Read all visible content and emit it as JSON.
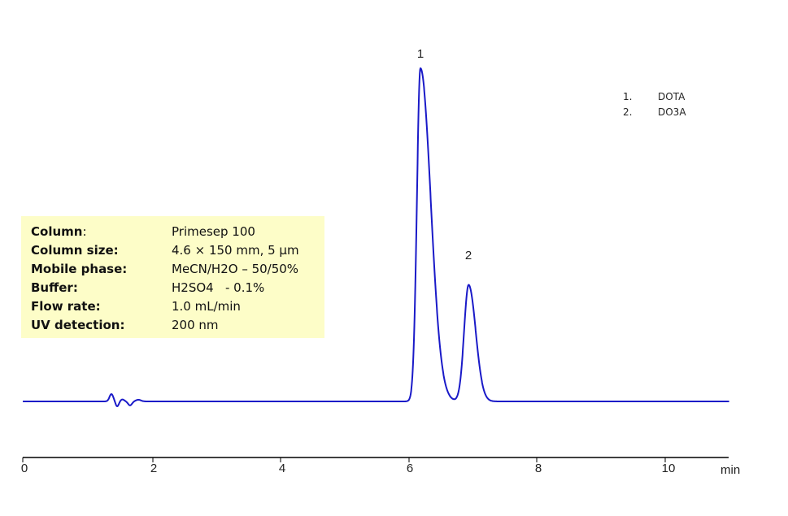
{
  "chart_data": {
    "type": "line",
    "title": "",
    "xlabel": "min",
    "ylabel": "",
    "xlim": [
      0,
      11
    ],
    "x_ticks": [
      0,
      2,
      4,
      6,
      8,
      10
    ],
    "x_tick_labels": [
      "0",
      "2",
      "4",
      "6",
      "8",
      "10"
    ],
    "grid": false,
    "line_color": "#1a1ac8",
    "baseline": 0,
    "peaks": [
      {
        "id": "1",
        "compound": "DOTA",
        "retention_time_min": 6.19,
        "relative_height": 1.0
      },
      {
        "id": "2",
        "compound": "DO3A",
        "retention_time_min": 6.94,
        "relative_height": 0.35
      }
    ],
    "disturbances": [
      {
        "time_min": 1.4,
        "description": "small injection disturbance"
      }
    ],
    "legend": {
      "position": "top-right",
      "entries": [
        {
          "num": "1.",
          "label": "DOTA"
        },
        {
          "num": "2.",
          "label": "DO3A"
        }
      ]
    },
    "annotations": [
      "1",
      "2"
    ]
  },
  "axis": {
    "ticks": [
      "0",
      "2",
      "4",
      "6",
      "8",
      "10"
    ],
    "unit": "min"
  },
  "peak_labels": [
    "1",
    "2"
  ],
  "legend": [
    {
      "num": "1.",
      "label": "DOTA"
    },
    {
      "num": "2.",
      "label": "DO3A"
    }
  ],
  "conditions": [
    {
      "key": "Column",
      "sep": ":",
      "value": "Primesep 100"
    },
    {
      "key": "Column size:",
      "sep": "",
      "value": "4.6 × 150 mm, 5 µm"
    },
    {
      "key": "Mobile phase:",
      "sep": "",
      "value": "MeCN/H2O – 50/50%"
    },
    {
      "key": "Buffer:",
      "sep": "",
      "value": "H2SO4   - 0.1%"
    },
    {
      "key": "Flow rate:",
      "sep": "",
      "value": "1.0 mL/min"
    },
    {
      "key": "UV detection:",
      "sep": "",
      "value": "200 nm"
    }
  ]
}
